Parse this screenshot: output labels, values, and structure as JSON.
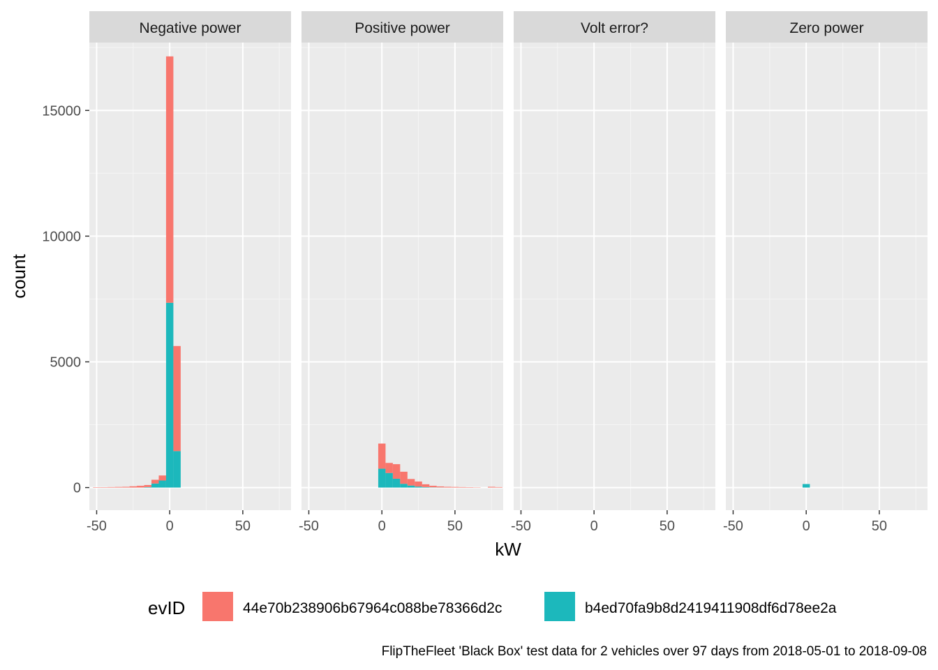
{
  "chart_data": {
    "type": "bar",
    "facets": [
      "Negative power",
      "Positive power",
      "Volt error?",
      "Zero power"
    ],
    "xlabel": "kW",
    "ylabel": "count",
    "xlim": [
      -55,
      83
    ],
    "ylim": [
      -900,
      17700
    ],
    "x_ticks": [
      -50,
      0,
      50
    ],
    "y_ticks": [
      0,
      5000,
      10000,
      15000
    ],
    "bin_width": 5,
    "stacked": true,
    "legend_title": "evID",
    "legend_position": "bottom",
    "series": [
      {
        "name": "44e70b238906b67964c088be78366d2c",
        "color": "#F8766D"
      },
      {
        "name": "b4ed70fa9b8d2419411908df6d78ee2a",
        "color": "#1CB8BC"
      }
    ],
    "caption": "FlipTheFleet 'Black Box' test data for 2 vehicles over 97 days from 2018-05-01 to 2018-09-08",
    "panels": [
      {
        "facet": "Negative power",
        "bins": [
          {
            "x": -50,
            "v": [
              15,
              0
            ]
          },
          {
            "x": -45,
            "v": [
              15,
              0
            ]
          },
          {
            "x": -40,
            "v": [
              20,
              0
            ]
          },
          {
            "x": -35,
            "v": [
              25,
              0
            ]
          },
          {
            "x": -30,
            "v": [
              30,
              0
            ]
          },
          {
            "x": -25,
            "v": [
              50,
              0
            ]
          },
          {
            "x": -20,
            "v": [
              70,
              0
            ]
          },
          {
            "x": -15,
            "v": [
              80,
              20
            ]
          },
          {
            "x": -10,
            "v": [
              150,
              160
            ]
          },
          {
            "x": -5,
            "v": [
              200,
              280
            ]
          },
          {
            "x": 0,
            "v": [
              9800,
              7350
            ]
          },
          {
            "x": 5,
            "v": [
              4180,
              1450
            ]
          }
        ]
      },
      {
        "facet": "Positive power",
        "bins": [
          {
            "x": 0,
            "v": [
              1000,
              750
            ]
          },
          {
            "x": 5,
            "v": [
              400,
              580
            ]
          },
          {
            "x": 10,
            "v": [
              580,
              350
            ]
          },
          {
            "x": 15,
            "v": [
              480,
              150
            ]
          },
          {
            "x": 20,
            "v": [
              260,
              80
            ]
          },
          {
            "x": 25,
            "v": [
              200,
              40
            ]
          },
          {
            "x": 30,
            "v": [
              110,
              20
            ]
          },
          {
            "x": 35,
            "v": [
              60,
              10
            ]
          },
          {
            "x": 40,
            "v": [
              40,
              5
            ]
          },
          {
            "x": 45,
            "v": [
              30,
              0
            ]
          },
          {
            "x": 50,
            "v": [
              25,
              0
            ]
          },
          {
            "x": 55,
            "v": [
              20,
              0
            ]
          },
          {
            "x": 60,
            "v": [
              15,
              0
            ]
          },
          {
            "x": 65,
            "v": [
              10,
              0
            ]
          },
          {
            "x": 70,
            "v": [
              0,
              0
            ]
          },
          {
            "x": 75,
            "v": [
              30,
              0
            ]
          },
          {
            "x": 80,
            "v": [
              20,
              0
            ]
          }
        ]
      },
      {
        "facet": "Volt error?",
        "bins": []
      },
      {
        "facet": "Zero power",
        "bins": [
          {
            "x": 0,
            "v": [
              0,
              140
            ]
          }
        ]
      }
    ]
  }
}
